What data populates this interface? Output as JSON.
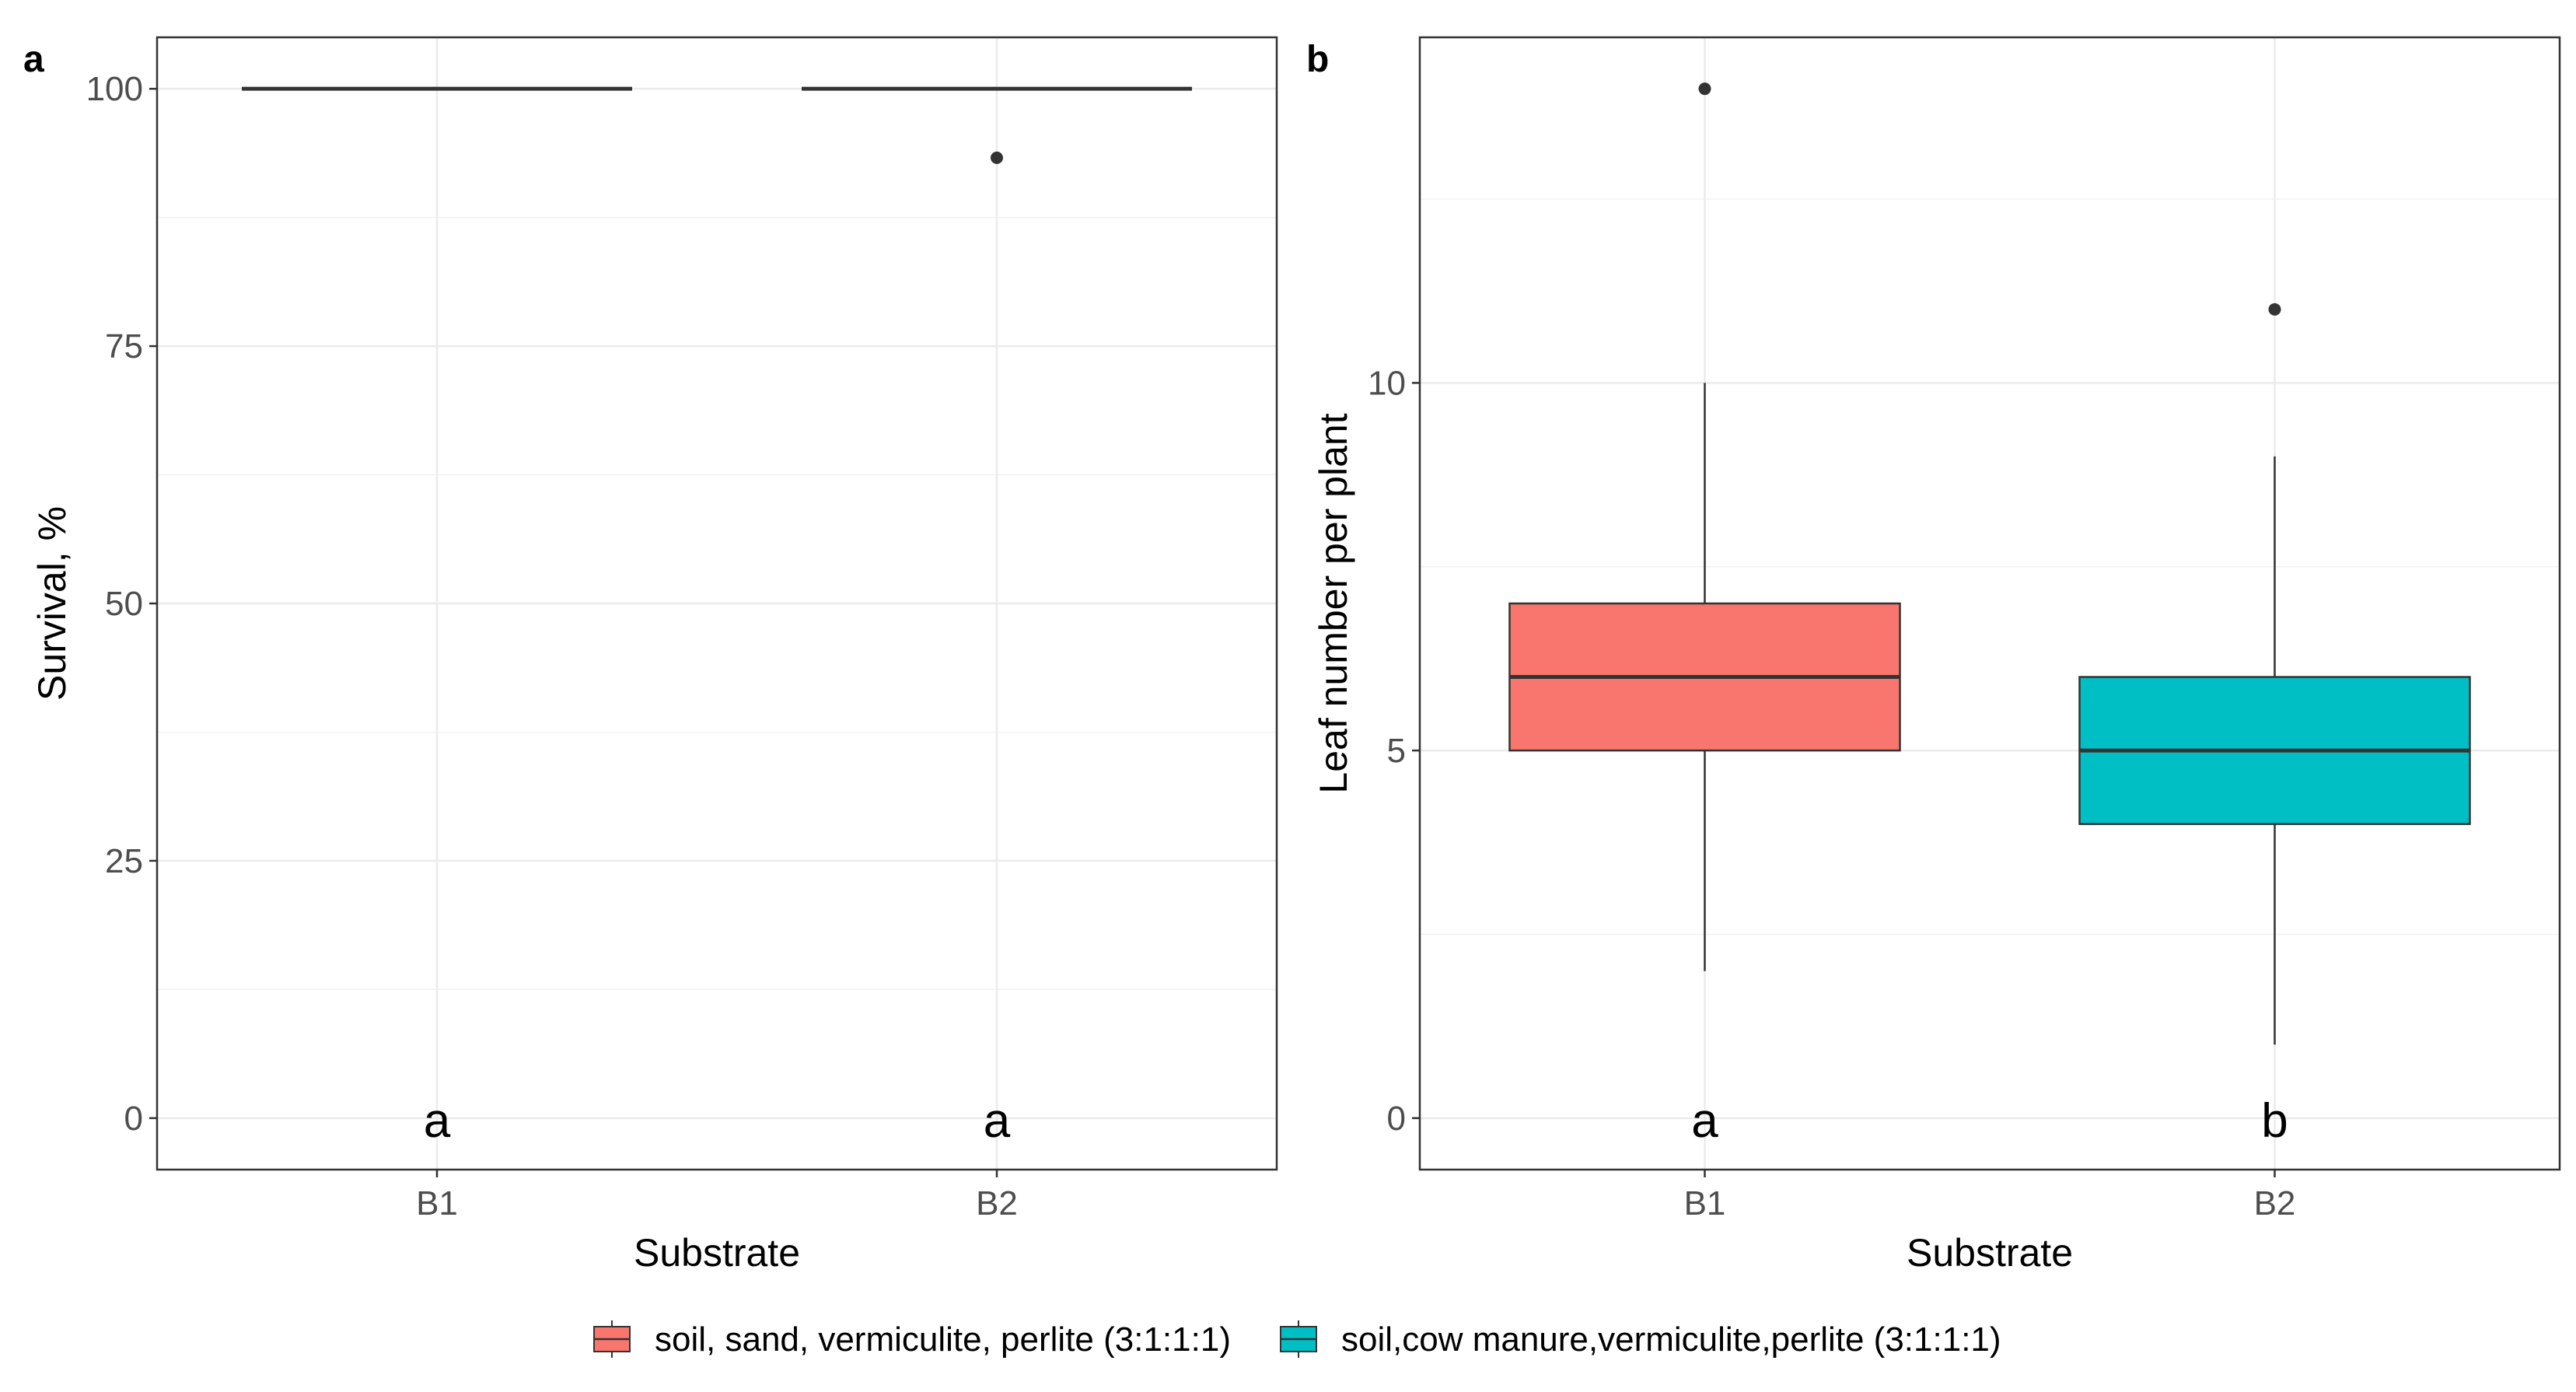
{
  "chart_data": [
    {
      "type": "box",
      "panel": "a",
      "xlabel": "Substrate",
      "ylabel": "Survival, %",
      "categories": [
        "B1",
        "B2"
      ],
      "ylim": [
        -5,
        105
      ],
      "yticks": [
        0,
        25,
        50,
        75,
        100
      ],
      "boxes": [
        {
          "category": "B1",
          "min": 100,
          "q1": 100,
          "median": 100,
          "q3": 100,
          "max": 100,
          "outliers": [],
          "letter": "a",
          "fill": "#F8766D"
        },
        {
          "category": "B2",
          "min": 100,
          "q1": 100,
          "median": 100,
          "q3": 100,
          "max": 100,
          "outliers": [
            93.3
          ],
          "letter": "a",
          "fill": "#00BFC4"
        }
      ]
    },
    {
      "type": "box",
      "panel": "b",
      "xlabel": "Substrate",
      "ylabel": "Leaf number per plant",
      "categories": [
        "B1",
        "B2"
      ],
      "ylim": [
        -0.7,
        14.7
      ],
      "yticks": [
        0,
        5,
        10
      ],
      "boxes": [
        {
          "category": "B1",
          "min": 2,
          "q1": 5,
          "median": 6,
          "q3": 7,
          "max": 10,
          "outliers": [
            14
          ],
          "letter": "a",
          "fill": "#F8766D"
        },
        {
          "category": "B2",
          "min": 1,
          "q1": 4,
          "median": 5,
          "q3": 6,
          "max": 9,
          "outliers": [
            11
          ],
          "letter": "b",
          "fill": "#00BFC4"
        }
      ]
    }
  ],
  "legend": [
    {
      "label": "soil, sand, vermiculite, perlite (3:1:1:1)",
      "color": "#F8766D"
    },
    {
      "label": "soil,cow manure,vermiculite,perlite (3:1:1:1)",
      "color": "#00BFC4"
    }
  ]
}
